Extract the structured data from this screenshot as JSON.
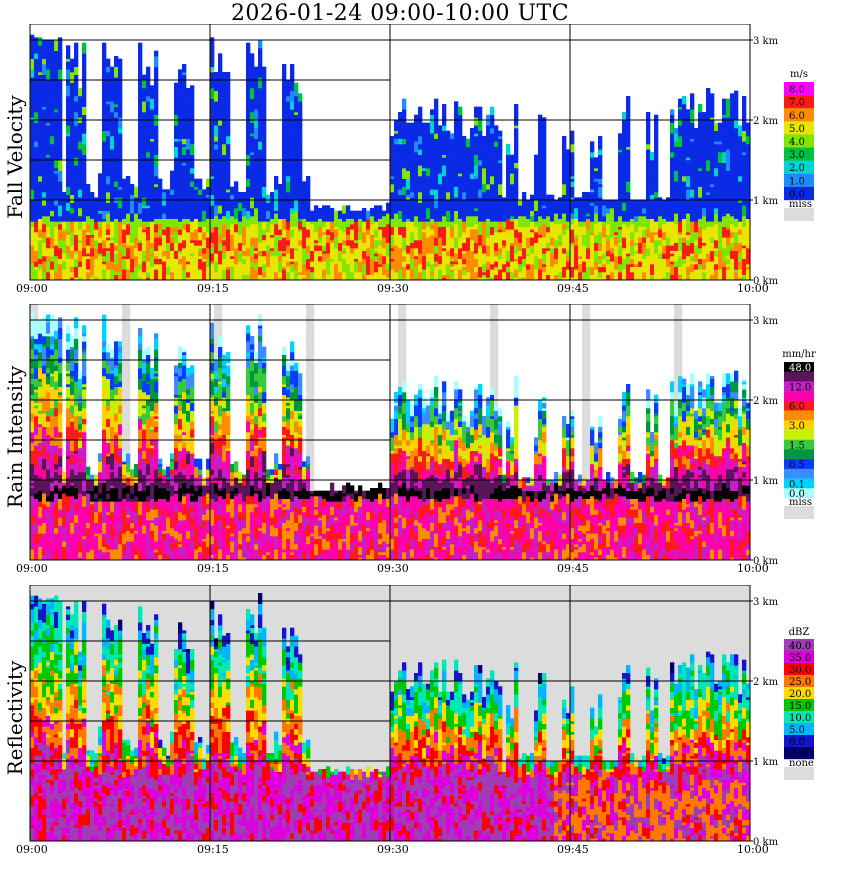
{
  "title": "2026-01-24   09:00-10:00 UTC",
  "chart_data": [
    {
      "type": "heatmap",
      "title": "Fall Velocity",
      "ylabel": "Fall Velocity",
      "x_ticks": [
        "09:00",
        "09:15",
        "09:30",
        "09:45",
        "10:00"
      ],
      "y_ticks": [
        "0 km",
        "1 km",
        "2 km",
        "3 km"
      ],
      "ylim": [
        0,
        3.2
      ],
      "xlim": [
        "09:00",
        "10:00"
      ],
      "grid": true,
      "legend": {
        "unit": "m/s",
        "entries": [
          {
            "label": "8.0",
            "color": "#ff00ff"
          },
          {
            "label": "7.0",
            "color": "#ff1a1a"
          },
          {
            "label": "6.0",
            "color": "#ff8c00"
          },
          {
            "label": "5.0",
            "color": "#e6e600"
          },
          {
            "label": "4.0",
            "color": "#80e600"
          },
          {
            "label": "3.0",
            "color": "#00c040"
          },
          {
            "label": "2.0",
            "color": "#00d2d2"
          },
          {
            "label": "1.0",
            "color": "#1e8cff"
          },
          {
            "label": "0.0",
            "color": "#0a2ae6"
          }
        ],
        "miss": {
          "label": "miss",
          "color": "#dcdcdc"
        }
      }
    },
    {
      "type": "heatmap",
      "title": "Rain Intensity",
      "ylabel": "Rain Intensity",
      "x_ticks": [
        "09:00",
        "09:15",
        "09:30",
        "09:45",
        "10:00"
      ],
      "y_ticks": [
        "0 km",
        "1 km",
        "2 km",
        "3 km"
      ],
      "ylim": [
        0,
        3.2
      ],
      "xlim": [
        "09:00",
        "10:00"
      ],
      "grid": true,
      "legend": {
        "unit": "mm/hr",
        "entries": [
          {
            "label": "48.0",
            "color": "#000000"
          },
          {
            "label": "",
            "color": "#5a145a"
          },
          {
            "label": "12.0",
            "color": "#c81ec8"
          },
          {
            "label": "",
            "color": "#ff00aa"
          },
          {
            "label": "6.0",
            "color": "#ff1a1a"
          },
          {
            "label": "",
            "color": "#ff8c00"
          },
          {
            "label": "3.0",
            "color": "#ffd200"
          },
          {
            "label": "",
            "color": "#c8f000"
          },
          {
            "label": "1.5",
            "color": "#3cc83c"
          },
          {
            "label": "",
            "color": "#009640"
          },
          {
            "label": "0.5",
            "color": "#0a3cff"
          },
          {
            "label": "",
            "color": "#3c8cff"
          },
          {
            "label": "0.1",
            "color": "#00d2ff"
          },
          {
            "label": "0.0",
            "color": "#aaffff"
          }
        ],
        "miss": {
          "label": "miss",
          "color": "#dcdcdc"
        }
      }
    },
    {
      "type": "heatmap",
      "title": "Reflectivity",
      "ylabel": "Reflectivity",
      "x_ticks": [
        "09:00",
        "09:15",
        "09:30",
        "09:45",
        "10:00"
      ],
      "y_ticks": [
        "0 km",
        "1 km",
        "2 km",
        "3 km"
      ],
      "ylim": [
        0,
        3.2
      ],
      "xlim": [
        "09:00",
        "10:00"
      ],
      "grid": true,
      "legend": {
        "unit": "dBZ",
        "entries": [
          {
            "label": "40.0",
            "color": "#a03cb4"
          },
          {
            "label": "35.0",
            "color": "#dc00dc"
          },
          {
            "label": "30.0",
            "color": "#ff0000"
          },
          {
            "label": "25.0",
            "color": "#ff7800"
          },
          {
            "label": "20.0",
            "color": "#ffdc00"
          },
          {
            "label": "15.0",
            "color": "#00c800"
          },
          {
            "label": "10.0",
            "color": "#00e6b4"
          },
          {
            "label": "5.0",
            "color": "#00b4ff"
          },
          {
            "label": "0.0",
            "color": "#1414c8"
          },
          {
            "label": "-5.0",
            "color": "#00006e"
          }
        ],
        "miss": {
          "label": "none",
          "color": "#dcdcdc"
        }
      }
    }
  ]
}
